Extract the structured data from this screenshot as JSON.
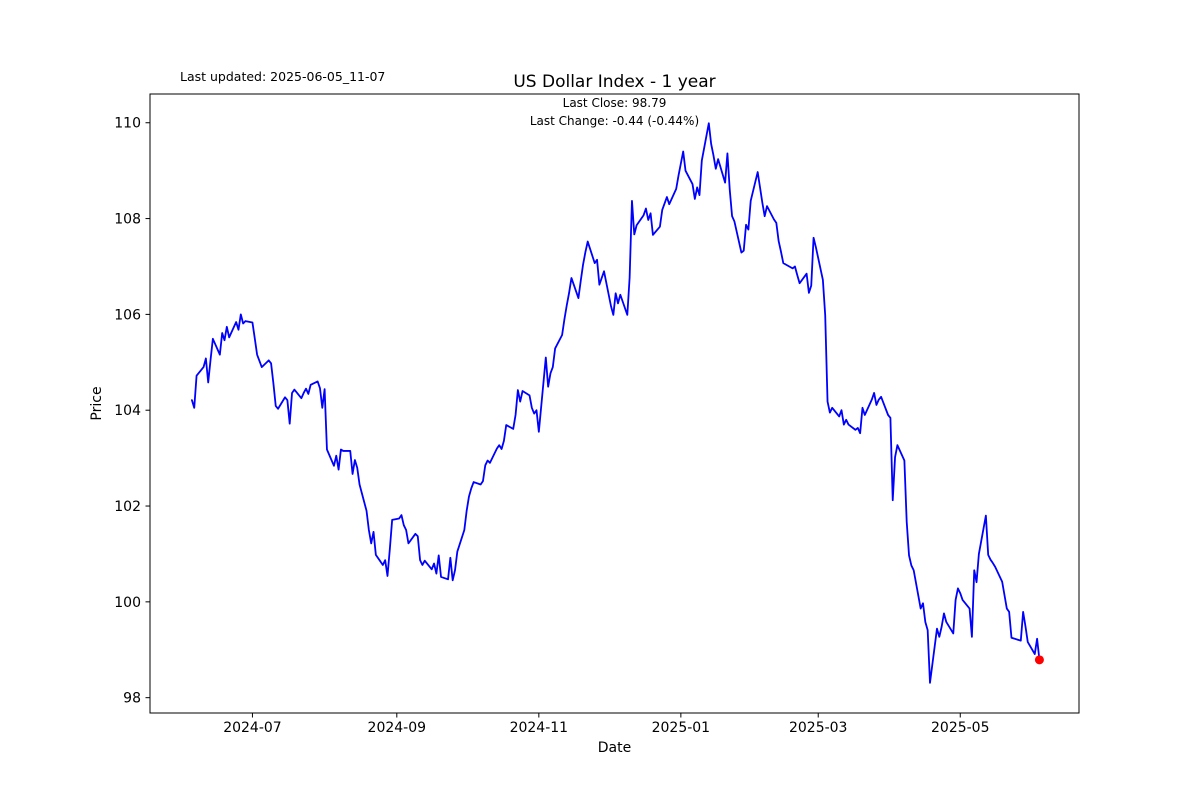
{
  "header": {
    "last_updated": "Last updated: 2025-06-05_11-07",
    "title": "US Dollar Index - 1 year",
    "subtitle_line1": "Last Close: 98.79",
    "subtitle_line2": "Last Change: -0.44 (-0.44%)"
  },
  "chart_data": {
    "type": "line",
    "title": "US Dollar Index - 1 year",
    "xlabel": "Date",
    "ylabel": "Price",
    "grid": false,
    "legend": "none",
    "line_color": "#0000ff",
    "line_width": 1.8,
    "x_range": [
      "2024-05-18",
      "2025-06-21"
    ],
    "y_range": [
      97.68,
      110.6
    ],
    "y_ticks": [
      98,
      100,
      102,
      104,
      106,
      108,
      110
    ],
    "x_ticks": [
      {
        "label": "2024-07",
        "date": "2024-07-01"
      },
      {
        "label": "2024-09",
        "date": "2024-09-01"
      },
      {
        "label": "2024-11",
        "date": "2024-11-01"
      },
      {
        "label": "2025-01",
        "date": "2025-01-01"
      },
      {
        "label": "2025-03",
        "date": "2025-03-01"
      },
      {
        "label": "2025-05",
        "date": "2025-05-01"
      }
    ],
    "end_marker": {
      "date": "2025-06-04",
      "value": 98.79,
      "color": "#ff0000",
      "radius": 4.5
    },
    "last_close": 98.79,
    "last_change": -0.44,
    "last_change_pct": -0.44,
    "series": [
      {
        "name": "US Dollar Index",
        "points": [
          [
            "2024-06-05",
            104.21
          ],
          [
            "2024-06-06",
            104.05
          ],
          [
            "2024-06-07",
            104.72
          ],
          [
            "2024-06-10",
            104.9
          ],
          [
            "2024-06-11",
            105.08
          ],
          [
            "2024-06-12",
            104.58
          ],
          [
            "2024-06-13",
            105.05
          ],
          [
            "2024-06-14",
            105.49
          ],
          [
            "2024-06-17",
            105.16
          ],
          [
            "2024-06-18",
            105.61
          ],
          [
            "2024-06-19",
            105.46
          ],
          [
            "2024-06-20",
            105.74
          ],
          [
            "2024-06-21",
            105.52
          ],
          [
            "2024-06-24",
            105.84
          ],
          [
            "2024-06-25",
            105.68
          ],
          [
            "2024-06-26",
            106.0
          ],
          [
            "2024-06-27",
            105.81
          ],
          [
            "2024-06-28",
            105.86
          ],
          [
            "2024-07-01",
            105.83
          ],
          [
            "2024-07-02",
            105.5
          ],
          [
            "2024-07-03",
            105.16
          ],
          [
            "2024-07-05",
            104.9
          ],
          [
            "2024-07-08",
            105.04
          ],
          [
            "2024-07-09",
            104.98
          ],
          [
            "2024-07-10",
            104.56
          ],
          [
            "2024-07-11",
            104.09
          ],
          [
            "2024-07-12",
            104.03
          ],
          [
            "2024-07-15",
            104.27
          ],
          [
            "2024-07-16",
            104.21
          ],
          [
            "2024-07-17",
            103.72
          ],
          [
            "2024-07-18",
            104.36
          ],
          [
            "2024-07-19",
            104.43
          ],
          [
            "2024-07-22",
            104.25
          ],
          [
            "2024-07-23",
            104.36
          ],
          [
            "2024-07-24",
            104.45
          ],
          [
            "2024-07-25",
            104.34
          ],
          [
            "2024-07-26",
            104.53
          ],
          [
            "2024-07-29",
            104.6
          ],
          [
            "2024-07-30",
            104.46
          ],
          [
            "2024-07-31",
            104.05
          ],
          [
            "2024-08-01",
            104.44
          ],
          [
            "2024-08-02",
            103.18
          ],
          [
            "2024-08-05",
            102.84
          ],
          [
            "2024-08-06",
            103.05
          ],
          [
            "2024-08-07",
            102.76
          ],
          [
            "2024-08-08",
            103.18
          ],
          [
            "2024-08-09",
            103.15
          ],
          [
            "2024-08-12",
            103.15
          ],
          [
            "2024-08-13",
            102.67
          ],
          [
            "2024-08-14",
            102.96
          ],
          [
            "2024-08-15",
            102.8
          ],
          [
            "2024-08-16",
            102.45
          ],
          [
            "2024-08-19",
            101.9
          ],
          [
            "2024-08-20",
            101.5
          ],
          [
            "2024-08-21",
            101.22
          ],
          [
            "2024-08-22",
            101.46
          ],
          [
            "2024-08-23",
            100.98
          ],
          [
            "2024-08-26",
            100.77
          ],
          [
            "2024-08-27",
            100.87
          ],
          [
            "2024-08-28",
            100.54
          ],
          [
            "2024-08-29",
            101.1
          ],
          [
            "2024-08-30",
            101.71
          ],
          [
            "2024-09-02",
            101.74
          ],
          [
            "2024-09-03",
            101.81
          ],
          [
            "2024-09-04",
            101.6
          ],
          [
            "2024-09-05",
            101.5
          ],
          [
            "2024-09-06",
            101.22
          ],
          [
            "2024-09-09",
            101.42
          ],
          [
            "2024-09-10",
            101.37
          ],
          [
            "2024-09-11",
            100.87
          ],
          [
            "2024-09-12",
            100.77
          ],
          [
            "2024-09-13",
            100.86
          ],
          [
            "2024-09-16",
            100.68
          ],
          [
            "2024-09-17",
            100.8
          ],
          [
            "2024-09-18",
            100.59
          ],
          [
            "2024-09-19",
            100.97
          ],
          [
            "2024-09-20",
            100.52
          ],
          [
            "2024-09-23",
            100.47
          ],
          [
            "2024-09-24",
            100.92
          ],
          [
            "2024-09-25",
            100.45
          ],
          [
            "2024-09-26",
            100.66
          ],
          [
            "2024-09-27",
            101.05
          ],
          [
            "2024-09-30",
            101.5
          ],
          [
            "2024-10-01",
            101.9
          ],
          [
            "2024-10-02",
            102.2
          ],
          [
            "2024-10-03",
            102.37
          ],
          [
            "2024-10-04",
            102.5
          ],
          [
            "2024-10-07",
            102.45
          ],
          [
            "2024-10-08",
            102.52
          ],
          [
            "2024-10-09",
            102.85
          ],
          [
            "2024-10-10",
            102.95
          ],
          [
            "2024-10-11",
            102.9
          ],
          [
            "2024-10-14",
            103.2
          ],
          [
            "2024-10-15",
            103.27
          ],
          [
            "2024-10-16",
            103.19
          ],
          [
            "2024-10-17",
            103.36
          ],
          [
            "2024-10-18",
            103.69
          ],
          [
            "2024-10-21",
            103.61
          ],
          [
            "2024-10-22",
            103.9
          ],
          [
            "2024-10-23",
            104.42
          ],
          [
            "2024-10-24",
            104.18
          ],
          [
            "2024-10-25",
            104.4
          ],
          [
            "2024-10-28",
            104.31
          ],
          [
            "2024-10-29",
            104.05
          ],
          [
            "2024-10-30",
            103.93
          ],
          [
            "2024-10-31",
            104.0
          ],
          [
            "2024-11-01",
            103.55
          ],
          [
            "2024-11-04",
            105.1
          ],
          [
            "2024-11-05",
            104.49
          ],
          [
            "2024-11-06",
            104.77
          ],
          [
            "2024-11-07",
            104.9
          ],
          [
            "2024-11-08",
            105.29
          ],
          [
            "2024-11-11",
            105.57
          ],
          [
            "2024-11-12",
            105.9
          ],
          [
            "2024-11-13",
            106.19
          ],
          [
            "2024-11-14",
            106.45
          ],
          [
            "2024-11-15",
            106.76
          ],
          [
            "2024-11-18",
            106.34
          ],
          [
            "2024-11-19",
            106.7
          ],
          [
            "2024-11-20",
            107.04
          ],
          [
            "2024-11-21",
            107.3
          ],
          [
            "2024-11-22",
            107.52
          ],
          [
            "2024-11-25",
            107.07
          ],
          [
            "2024-11-26",
            107.14
          ],
          [
            "2024-11-27",
            106.62
          ],
          [
            "2024-11-29",
            106.9
          ],
          [
            "2024-12-02",
            106.17
          ],
          [
            "2024-12-03",
            105.99
          ],
          [
            "2024-12-04",
            106.44
          ],
          [
            "2024-12-05",
            106.23
          ],
          [
            "2024-12-06",
            106.41
          ],
          [
            "2024-12-09",
            105.99
          ],
          [
            "2024-12-10",
            106.77
          ],
          [
            "2024-12-11",
            108.37
          ],
          [
            "2024-12-12",
            107.67
          ],
          [
            "2024-12-13",
            107.86
          ],
          [
            "2024-12-16",
            108.07
          ],
          [
            "2024-12-17",
            108.21
          ],
          [
            "2024-12-18",
            107.97
          ],
          [
            "2024-12-19",
            108.11
          ],
          [
            "2024-12-20",
            107.66
          ],
          [
            "2024-12-23",
            107.83
          ],
          [
            "2024-12-24",
            108.18
          ],
          [
            "2024-12-26",
            108.45
          ],
          [
            "2024-12-27",
            108.3
          ],
          [
            "2024-12-30",
            108.62
          ],
          [
            "2024-12-31",
            108.9
          ],
          [
            "2025-01-02",
            109.4
          ],
          [
            "2025-01-03",
            109.0
          ],
          [
            "2025-01-06",
            108.72
          ],
          [
            "2025-01-07",
            108.41
          ],
          [
            "2025-01-08",
            108.65
          ],
          [
            "2025-01-09",
            108.49
          ],
          [
            "2025-01-10",
            109.21
          ],
          [
            "2025-01-13",
            109.99
          ],
          [
            "2025-01-14",
            109.56
          ],
          [
            "2025-01-15",
            109.32
          ],
          [
            "2025-01-16",
            109.04
          ],
          [
            "2025-01-17",
            109.24
          ],
          [
            "2025-01-20",
            108.75
          ],
          [
            "2025-01-21",
            109.36
          ],
          [
            "2025-01-22",
            108.6
          ],
          [
            "2025-01-23",
            108.05
          ],
          [
            "2025-01-24",
            107.94
          ],
          [
            "2025-01-27",
            107.29
          ],
          [
            "2025-01-28",
            107.33
          ],
          [
            "2025-01-29",
            107.87
          ],
          [
            "2025-01-30",
            107.77
          ],
          [
            "2025-01-31",
            108.37
          ],
          [
            "2025-02-03",
            108.97
          ],
          [
            "2025-02-04",
            108.65
          ],
          [
            "2025-02-05",
            108.33
          ],
          [
            "2025-02-06",
            108.05
          ],
          [
            "2025-02-07",
            108.26
          ],
          [
            "2025-02-10",
            107.98
          ],
          [
            "2025-02-11",
            107.91
          ],
          [
            "2025-02-12",
            107.53
          ],
          [
            "2025-02-13",
            107.31
          ],
          [
            "2025-02-14",
            107.07
          ],
          [
            "2025-02-18",
            106.96
          ],
          [
            "2025-02-19",
            107.0
          ],
          [
            "2025-02-20",
            106.82
          ],
          [
            "2025-02-21",
            106.65
          ],
          [
            "2025-02-24",
            106.85
          ],
          [
            "2025-02-25",
            106.45
          ],
          [
            "2025-02-26",
            106.6
          ],
          [
            "2025-02-27",
            107.6
          ],
          [
            "2025-02-28",
            107.4
          ],
          [
            "2025-03-03",
            106.72
          ],
          [
            "2025-03-04",
            105.98
          ],
          [
            "2025-03-05",
            104.18
          ],
          [
            "2025-03-06",
            103.95
          ],
          [
            "2025-03-07",
            104.05
          ],
          [
            "2025-03-10",
            103.87
          ],
          [
            "2025-03-11",
            104.0
          ],
          [
            "2025-03-12",
            103.7
          ],
          [
            "2025-03-13",
            103.8
          ],
          [
            "2025-03-14",
            103.7
          ],
          [
            "2025-03-17",
            103.59
          ],
          [
            "2025-03-18",
            103.63
          ],
          [
            "2025-03-19",
            103.52
          ],
          [
            "2025-03-20",
            104.05
          ],
          [
            "2025-03-21",
            103.9
          ],
          [
            "2025-03-24",
            104.22
          ],
          [
            "2025-03-25",
            104.36
          ],
          [
            "2025-03-26",
            104.11
          ],
          [
            "2025-03-27",
            104.22
          ],
          [
            "2025-03-28",
            104.28
          ],
          [
            "2025-03-31",
            103.9
          ],
          [
            "2025-04-01",
            103.84
          ],
          [
            "2025-04-02",
            102.12
          ],
          [
            "2025-04-03",
            103.02
          ],
          [
            "2025-04-04",
            103.27
          ],
          [
            "2025-04-07",
            102.95
          ],
          [
            "2025-04-08",
            101.67
          ],
          [
            "2025-04-09",
            100.97
          ],
          [
            "2025-04-10",
            100.76
          ],
          [
            "2025-04-11",
            100.66
          ],
          [
            "2025-04-14",
            99.86
          ],
          [
            "2025-04-15",
            99.97
          ],
          [
            "2025-04-16",
            99.58
          ],
          [
            "2025-04-17",
            99.41
          ],
          [
            "2025-04-18",
            98.31
          ],
          [
            "2025-04-21",
            99.44
          ],
          [
            "2025-04-22",
            99.27
          ],
          [
            "2025-04-23",
            99.48
          ],
          [
            "2025-04-24",
            99.76
          ],
          [
            "2025-04-25",
            99.58
          ],
          [
            "2025-04-28",
            99.34
          ],
          [
            "2025-04-29",
            100.04
          ],
          [
            "2025-04-30",
            100.28
          ],
          [
            "2025-05-01",
            100.18
          ],
          [
            "2025-05-02",
            100.04
          ],
          [
            "2025-05-05",
            99.86
          ],
          [
            "2025-05-06",
            99.27
          ],
          [
            "2025-05-07",
            100.66
          ],
          [
            "2025-05-08",
            100.41
          ],
          [
            "2025-05-09",
            101.0
          ],
          [
            "2025-05-12",
            101.8
          ],
          [
            "2025-05-13",
            100.98
          ],
          [
            "2025-05-14",
            100.88
          ],
          [
            "2025-05-15",
            100.81
          ],
          [
            "2025-05-16",
            100.73
          ],
          [
            "2025-05-19",
            100.42
          ],
          [
            "2025-05-20",
            100.14
          ],
          [
            "2025-05-21",
            99.86
          ],
          [
            "2025-05-22",
            99.79
          ],
          [
            "2025-05-23",
            99.25
          ],
          [
            "2025-05-27",
            99.19
          ],
          [
            "2025-05-28",
            99.79
          ],
          [
            "2025-05-29",
            99.49
          ],
          [
            "2025-05-30",
            99.16
          ],
          [
            "2025-06-02",
            98.91
          ],
          [
            "2025-06-03",
            99.23
          ],
          [
            "2025-06-04",
            98.79
          ]
        ]
      }
    ]
  }
}
